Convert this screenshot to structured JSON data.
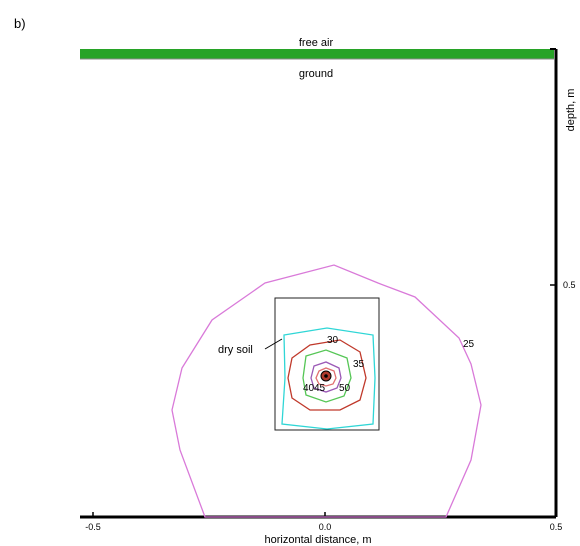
{
  "panel_label": "b)",
  "labels": {
    "free_air": "free air",
    "ground": "ground",
    "dry_soil": "dry soil",
    "xlabel": "horizontal distance, m",
    "ylabel": "depth, m"
  },
  "x_ticks": [
    "-0.5",
    "0.0",
    "0.5"
  ],
  "y_ticks": [
    "0.5"
  ],
  "colors": {
    "air_band": "#27a327",
    "contour_25": "#d97ad9",
    "contour_30": "#2fd6d6",
    "contour_35": "#c0392b",
    "contour_40": "#55c655",
    "contour_45": "#9b59b6",
    "contour_50": "#e07070",
    "source_fill": "#b03a2e"
  },
  "chart_data": {
    "type": "contour",
    "x_range": [
      -0.5,
      0.5
    ],
    "y_range": [
      0,
      1.0
    ],
    "contours": [
      {
        "level": "25",
        "label": "25",
        "color_key": "contour_25",
        "radius": 0.33
      },
      {
        "level": "30",
        "label": "30",
        "color_key": "contour_30",
        "radius": 0.105
      },
      {
        "level": "35",
        "label": "35",
        "color_key": "contour_35",
        "radius": 0.075
      },
      {
        "level": "40",
        "label": "40",
        "color_key": "contour_40",
        "radius": 0.05
      },
      {
        "level": "45",
        "label": "45",
        "color_key": "contour_45",
        "radius": 0.03
      },
      {
        "level": "50",
        "label": "50",
        "color_key": "contour_50",
        "radius": 0.015
      }
    ],
    "source": {
      "x": 0.0,
      "depth": 0.72
    },
    "dry_soil_box": {
      "x": [
        -0.11,
        0.11
      ],
      "depth": [
        0.6,
        0.84
      ]
    }
  }
}
